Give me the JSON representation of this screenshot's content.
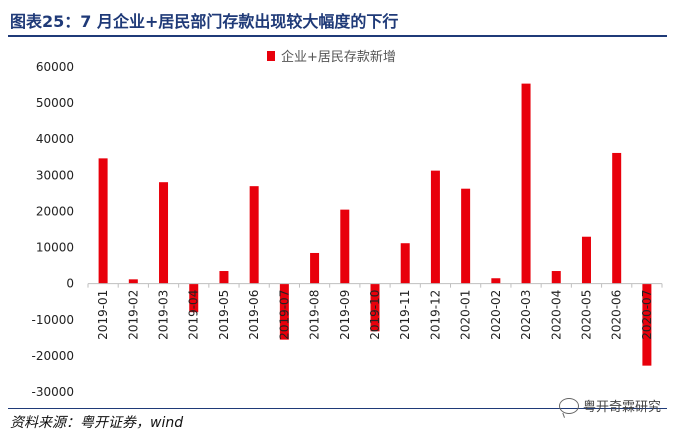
{
  "header": {
    "title": "图表25：7 月企业+居民部门存款出现较大幅度的下行"
  },
  "footer": {
    "source": "资料来源：粤开证券，wind",
    "watermark": "粤开奇霖研究"
  },
  "colors": {
    "bar": "#e8000b",
    "axis": "#bfbfbf",
    "title": "#1f3a78"
  },
  "chart_data": {
    "type": "bar",
    "title": "",
    "xlabel": "",
    "ylabel": "",
    "ylim": [
      -30000,
      60000
    ],
    "yticks": [
      60000,
      50000,
      40000,
      30000,
      20000,
      10000,
      0,
      -10000,
      -20000,
      -30000
    ],
    "legend_position": "top",
    "grid": false,
    "categories": [
      "2019-01",
      "2019-02",
      "2019-03",
      "2019-04",
      "2019-05",
      "2019-06",
      "2019-07",
      "2019-08",
      "2019-09",
      "2019-10",
      "2019-11",
      "2019-12",
      "2020-01",
      "2020-02",
      "2020-03",
      "2020-04",
      "2020-05",
      "2020-06",
      "2020-07"
    ],
    "series": [
      {
        "name": "企业+居民存款新增",
        "values": [
          34700,
          1200,
          28100,
          -7900,
          3500,
          27000,
          -15500,
          8500,
          20500,
          -13200,
          11200,
          31300,
          26300,
          1500,
          55400,
          3500,
          13000,
          36200,
          -22700
        ]
      }
    ]
  }
}
